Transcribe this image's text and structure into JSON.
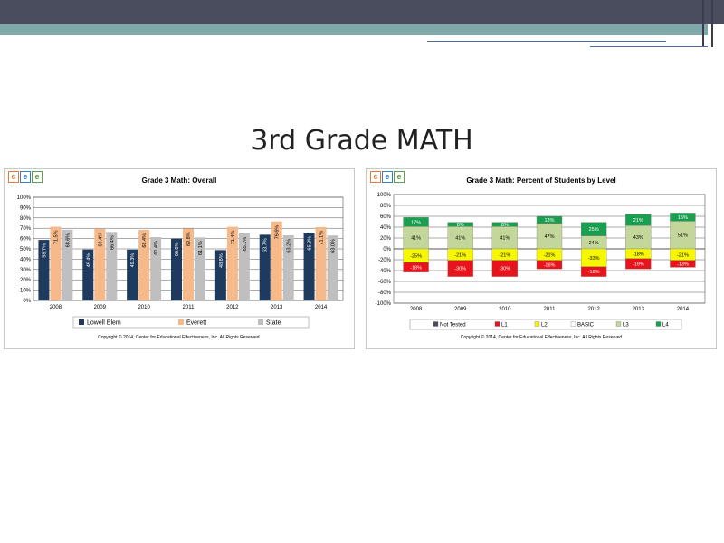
{
  "slide": {
    "title": "3rd Grade MATH"
  },
  "logo_letters": [
    "c",
    "e",
    "e"
  ],
  "logo_colors": [
    "#e07b39",
    "#3a7dc9",
    "#5aa34a"
  ],
  "chart_data": [
    {
      "type": "bar",
      "title": "Grade 3 Math: Overall",
      "categories": [
        "2008",
        "2009",
        "2010",
        "2011",
        "2012",
        "2013",
        "2014"
      ],
      "ylim": [
        0,
        100
      ],
      "yticks": [
        "0%",
        "10%",
        "20%",
        "30%",
        "40%",
        "50%",
        "60%",
        "70%",
        "80%",
        "90%",
        "100%"
      ],
      "series": [
        {
          "name": "Lowell Elem",
          "color": "#1f3a5f",
          "values": [
            58.7,
            49.4,
            49.3,
            60.0,
            48.8,
            63.7,
            65.8
          ],
          "labels": [
            "58.7%",
            "49.4%",
            "49.3%",
            "60.0%",
            "48.8%",
            "63.7%",
            "65.8%"
          ]
        },
        {
          "name": "Everett",
          "color": "#f5b98a",
          "values": [
            71.5,
            69.4,
            68.4,
            69.8,
            71.4,
            76.6,
            71.1
          ],
          "labels": [
            "71.5%",
            "69.4%",
            "68.4%",
            "69.8%",
            "71.4%",
            "76.6%",
            "71.1%"
          ]
        },
        {
          "name": "State",
          "color": "#bfbfbf",
          "values": [
            68.6,
            66.4,
            61.4,
            61.1,
            65.1,
            63.2,
            63.0
          ],
          "labels": [
            "68.6%",
            "66.4%",
            "61.4%",
            "61.1%",
            "65.1%",
            "63.2%",
            "63.0%"
          ]
        }
      ],
      "grid": true,
      "legend": "bottom",
      "copyright": "Copyright © 2014, Center for Educational Effectiveness, Inc. All Rights Reserved."
    },
    {
      "type": "bar",
      "stacked": "diverging",
      "title": "Grade 3 Math: Percent of Students by Level",
      "categories": [
        "2008",
        "2009",
        "2010",
        "2011",
        "2012",
        "2013",
        "2014"
      ],
      "ylim": [
        -100,
        100
      ],
      "yticks": [
        "-100%",
        "-80%",
        "-60%",
        "-40%",
        "-20%",
        "0%",
        "20%",
        "40%",
        "60%",
        "80%",
        "100%"
      ],
      "series": [
        {
          "name": "Not Tested",
          "color": "#4a4a5a",
          "values": [
            0,
            0,
            0,
            0,
            0,
            0,
            0
          ]
        },
        {
          "name": "L1",
          "color": "#e8141c",
          "values": [
            -18,
            -30,
            -30,
            -16,
            -18,
            -19,
            -13
          ],
          "labels": [
            "-18%",
            "-30%",
            "-30%",
            "-16%",
            "-18%",
            "-19%",
            "-13%"
          ]
        },
        {
          "name": "L2",
          "color": "#f7f700",
          "values": [
            -25,
            -21,
            -21,
            -21,
            -33,
            -18,
            -21
          ],
          "labels": [
            "-25%",
            "-21%",
            "-21%",
            "-21%",
            "-33%",
            "-18%",
            "-21%"
          ]
        },
        {
          "name": "BASIC",
          "color": "#ffffff",
          "values": [
            0,
            0,
            0,
            0,
            0,
            0,
            0
          ]
        },
        {
          "name": "L3",
          "color": "#c4d79b",
          "values": [
            41,
            41,
            41,
            47,
            24,
            43,
            51
          ],
          "labels": [
            "41%",
            "41%",
            "41%",
            "47%",
            "24%",
            "43%",
            "51%"
          ]
        },
        {
          "name": "L4",
          "color": "#1a9e50",
          "values": [
            17,
            8,
            8,
            13,
            25,
            21,
            15
          ],
          "labels": [
            "17%",
            "8%",
            "8%",
            "13%",
            "25%",
            "21%",
            "15%"
          ]
        }
      ],
      "grid": true,
      "legend": "bottom",
      "copyright": "Copyright © 2014, Center for Educational Effectiveness, Inc. All Rights Reserved"
    }
  ]
}
